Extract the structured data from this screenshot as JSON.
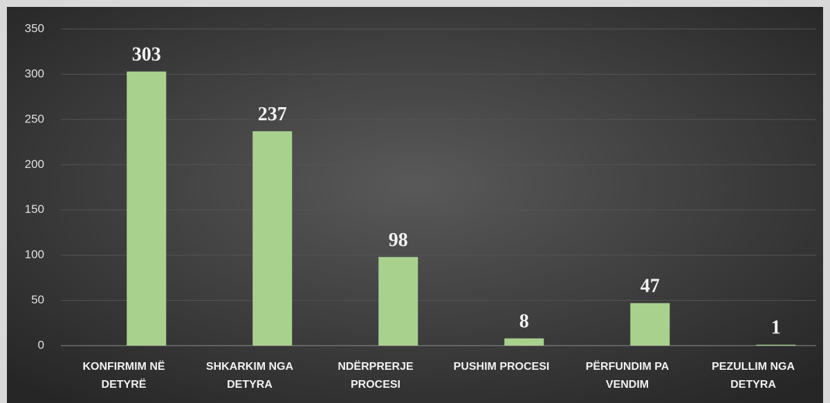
{
  "chart_data": {
    "type": "bar",
    "categories": [
      "KONFIRMIM NË DETYRË",
      "SHKARKIM NGA DETYRA",
      "NDËRPRERJE PROCESI",
      "PUSHIM PROCESI",
      "PËRFUNDIM PA VENDIM",
      "PEZULLIM NGA DETYRA"
    ],
    "values": [
      303,
      237,
      98,
      8,
      47,
      1
    ],
    "color": "#a9d18e",
    "ylim": [
      0,
      350
    ],
    "yticks": [
      0,
      50,
      100,
      150,
      200,
      250,
      300,
      350
    ],
    "grid": true
  }
}
